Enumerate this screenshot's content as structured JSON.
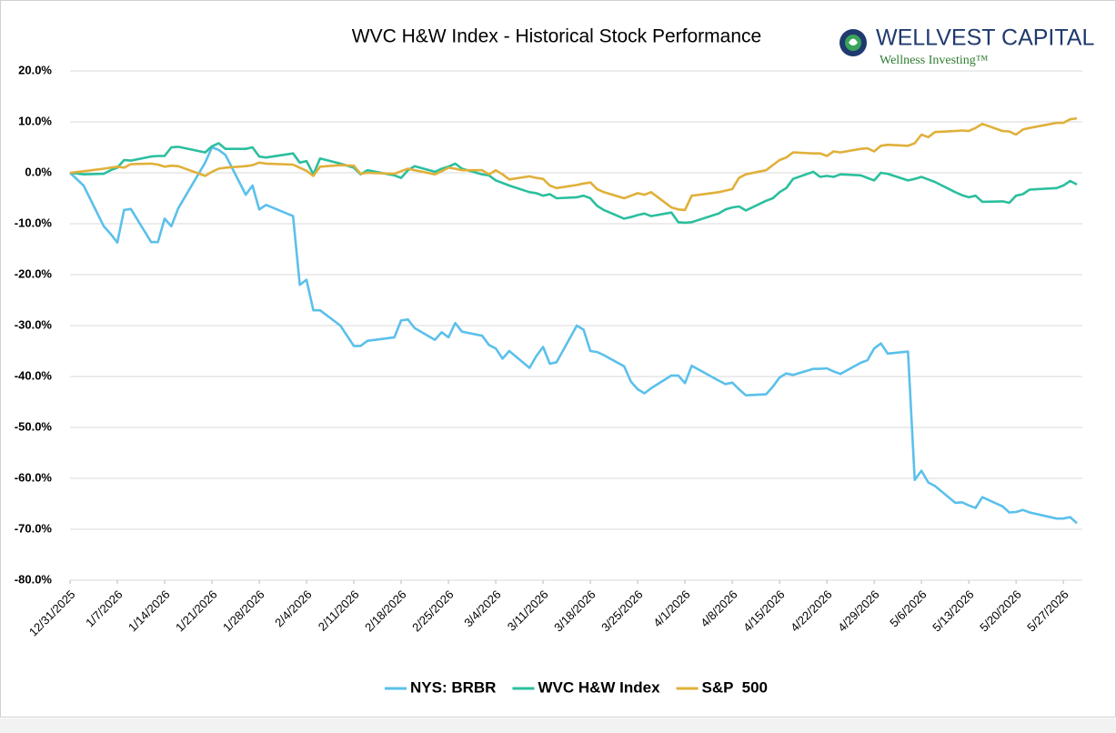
{
  "logo": {
    "name": "WELLVEST CAPITAL",
    "tagline": "Wellness Investing™"
  },
  "chart_data": {
    "type": "line",
    "title": "WVC H&W Index - Historical Stock Performance",
    "x": [
      "12/31/2025",
      "1/2/2026",
      "1/5/2026",
      "1/6/2026",
      "1/7/2026",
      "1/8/2026",
      "1/9/2026",
      "1/12/2026",
      "1/13/2026",
      "1/14/2026",
      "1/15/2026",
      "1/16/2026",
      "1/20/2026",
      "1/21/2026",
      "1/22/2026",
      "1/23/2026",
      "1/26/2026",
      "1/27/2026",
      "1/28/2026",
      "1/29/2026",
      "2/2/2026",
      "2/3/2026",
      "2/4/2026",
      "2/5/2026",
      "2/6/2026",
      "2/9/2026",
      "2/11/2026",
      "2/12/2026",
      "2/13/2026",
      "2/17/2026",
      "2/18/2026",
      "2/19/2026",
      "2/20/2026",
      "2/23/2026",
      "2/24/2026",
      "2/25/2026",
      "2/26/2026",
      "2/27/2026",
      "3/2/2026",
      "3/3/2026",
      "3/4/2026",
      "3/5/2026",
      "3/6/2026",
      "3/9/2026",
      "3/10/2026",
      "3/11/2026",
      "3/12/2026",
      "3/13/2026",
      "3/16/2026",
      "3/17/2026",
      "3/18/2026",
      "3/19/2026",
      "3/20/2026",
      "3/23/2026",
      "3/24/2026",
      "3/25/2026",
      "3/26/2026",
      "3/27/2026",
      "3/30/2026",
      "3/31/2026",
      "4/1/2026",
      "4/2/2026",
      "4/6/2026",
      "4/7/2026",
      "4/8/2026",
      "4/9/2026",
      "4/10/2026",
      "4/13/2026",
      "4/14/2026",
      "4/15/2026",
      "4/16/2026",
      "4/17/2026",
      "4/20/2026",
      "4/21/2026",
      "4/22/2026",
      "4/23/2026",
      "4/24/2026",
      "4/27/2026",
      "4/28/2026",
      "4/29/2026",
      "4/30/2026",
      "5/1/2026",
      "5/4/2026",
      "5/5/2026",
      "5/6/2026",
      "5/7/2026",
      "5/8/2026",
      "5/11/2026",
      "5/12/2026",
      "5/13/2026",
      "5/14/2026",
      "5/15/2026",
      "5/18/2026",
      "5/19/2026",
      "5/20/2026",
      "5/21/2026",
      "5/22/2026",
      "5/26/2026",
      "5/27/2026",
      "5/28/2026",
      "5/29/2026"
    ],
    "series": [
      {
        "name": "NYS: BRBR",
        "color": "#5bc0eb",
        "values": [
          0,
          -2.5,
          -10.5,
          -12,
          -13.7,
          -7.3,
          -7.1,
          -13.6,
          -13.6,
          -9,
          -10.5,
          -7,
          2,
          5,
          4.5,
          3.5,
          -4.3,
          -2.5,
          -7.2,
          -6.3,
          -8.5,
          -22,
          -21,
          -27,
          -27,
          -30,
          -34,
          -34,
          -33,
          -32.3,
          -29,
          -28.8,
          -30.5,
          -32.8,
          -31.3,
          -32.3,
          -29.5,
          -31.2,
          -32,
          -33.8,
          -34.5,
          -36.5,
          -35,
          -38.3,
          -36,
          -34.2,
          -37.5,
          -37.2,
          -30,
          -30.8,
          -35,
          -35.2,
          -35.8,
          -38,
          -41,
          -42.5,
          -43.3,
          -42.3,
          -39.8,
          -39.8,
          -41.3,
          -37.9,
          -40.8,
          -41.5,
          -41.2,
          -42.5,
          -43.7,
          -43.5,
          -42,
          -40.2,
          -39.4,
          -39.7,
          -38.5,
          -38.5,
          -38.4,
          -39,
          -39.5,
          -37.3,
          -36.8,
          -34.5,
          -33.5,
          -35.5,
          -35.1,
          -60.3,
          -58.5,
          -60.8,
          -61.5,
          -64.8,
          -64.7,
          -65.3,
          -65.8,
          -63.7,
          -65.5,
          -66.7,
          -66.6,
          -66.2,
          -66.7,
          -67.9,
          -67.9,
          -67.6,
          -68.8
        ]
      },
      {
        "name": "WVC H&W Index",
        "color": "#2bbf9e",
        "values": [
          0,
          -0.3,
          -0.2,
          0.5,
          1,
          2.5,
          2.4,
          3.2,
          3.3,
          3.3,
          5,
          5.1,
          4,
          5.2,
          5.8,
          4.7,
          4.7,
          5,
          3.2,
          3,
          3.8,
          2,
          2.3,
          -0.3,
          2.8,
          1.8,
          1,
          -0.3,
          0.5,
          -0.5,
          -1,
          0.5,
          1.3,
          0.2,
          0.8,
          1.2,
          1.8,
          0.8,
          -0.3,
          -0.5,
          -1.5,
          -2,
          -2.5,
          -3.8,
          -4,
          -4.5,
          -4.2,
          -5,
          -4.8,
          -4.5,
          -5,
          -6.5,
          -7.3,
          -9,
          -8.7,
          -8.3,
          -8,
          -8.5,
          -7.8,
          -9.7,
          -9.8,
          -9.7,
          -8,
          -7.2,
          -6.8,
          -6.6,
          -7.4,
          -5.5,
          -5,
          -3.8,
          -3,
          -1.2,
          0.2,
          -0.8,
          -0.6,
          -0.8,
          -0.3,
          -0.5,
          -1,
          -1.5,
          0,
          -0.2,
          -1.5,
          -1.2,
          -0.8,
          -1.3,
          -1.8,
          -3.8,
          -4.4,
          -4.8,
          -4.5,
          -5.7,
          -5.6,
          -5.9,
          -4.5,
          -4.2,
          -3.3,
          -3,
          -2.5,
          -1.6,
          -2.3
        ]
      },
      {
        "name": "S&P  500",
        "color": "#e0b03a",
        "values": [
          0,
          0.3,
          0.8,
          1,
          1.2,
          1,
          1.7,
          1.8,
          1.6,
          1.2,
          1.4,
          1.3,
          -0.6,
          0.2,
          0.8,
          1,
          1.3,
          1.5,
          2,
          1.8,
          1.6,
          1,
          0.4,
          -0.6,
          1.2,
          1.5,
          1.4,
          -0.2,
          0,
          -0.2,
          0.3,
          0.8,
          0.5,
          -0.3,
          0.3,
          1,
          0.8,
          0.5,
          0.5,
          -0.3,
          0.5,
          -0.3,
          -1.3,
          -0.7,
          -1,
          -1.2,
          -2.5,
          -3,
          -2.4,
          -2.1,
          -1.9,
          -3.2,
          -3.8,
          -5,
          -4.5,
          -4,
          -4.3,
          -3.8,
          -6.8,
          -7.2,
          -7.3,
          -4.5,
          -3.8,
          -3.5,
          -3.2,
          -1,
          -0.3,
          0.5,
          1.5,
          2.5,
          3,
          4,
          3.8,
          3.8,
          3.3,
          4.2,
          4,
          4.7,
          4.8,
          4.2,
          5.3,
          5.5,
          5.3,
          5.8,
          7.5,
          7,
          8,
          8.2,
          8.3,
          8.2,
          8.8,
          9.6,
          8.2,
          8.1,
          7.5,
          8.5,
          8.8,
          9.8,
          9.8,
          10.5,
          10.7
        ]
      }
    ],
    "xlim": [
      "12/31/2025",
      "5/29/2026"
    ],
    "xticks": [
      "12/31/2025",
      "1/7/2026",
      "1/14/2026",
      "1/21/2026",
      "1/28/2026",
      "2/4/2026",
      "2/11/2026",
      "2/18/2026",
      "2/25/2026",
      "3/4/2026",
      "3/11/2026",
      "3/18/2026",
      "3/25/2026",
      "4/1/2026",
      "4/8/2026",
      "4/15/2026",
      "4/22/2026",
      "4/29/2026",
      "5/6/2026",
      "5/13/2026",
      "5/20/2026",
      "5/27/2026"
    ],
    "ylim": [
      -80,
      20
    ],
    "yticks": [
      {
        "value": 20,
        "label": "20.0%"
      },
      {
        "value": 10,
        "label": "10.0%"
      },
      {
        "value": 0,
        "label": "0.0%"
      },
      {
        "value": -10,
        "label": "-10.0%"
      },
      {
        "value": -20,
        "label": "-20.0%"
      },
      {
        "value": -30,
        "label": "-30.0%"
      },
      {
        "value": -40,
        "label": "-40.0%"
      },
      {
        "value": -50,
        "label": "-50.0%"
      },
      {
        "value": -60,
        "label": "-60.0%"
      },
      {
        "value": -70,
        "label": "-70.0%"
      },
      {
        "value": -80,
        "label": "-80.0%"
      }
    ],
    "grid": true,
    "legend": "bottom"
  }
}
